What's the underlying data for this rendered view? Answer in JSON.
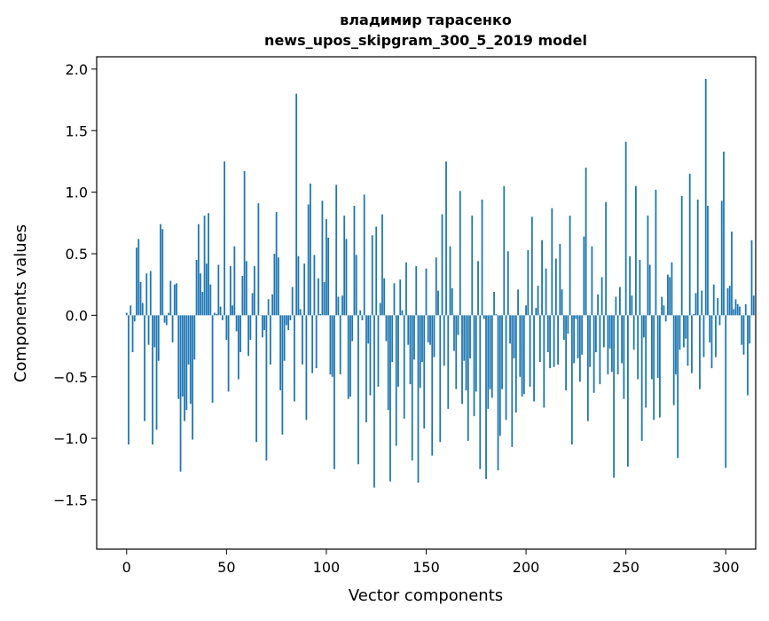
{
  "chart_data": {
    "type": "bar",
    "title": "владимир тарасенко",
    "subtitle": "news_upos_skipgram_300_5_2019 model",
    "xlabel": "Vector components",
    "ylabel": "Components values",
    "xlim": [
      -15,
      315
    ],
    "ylim": [
      -1.9,
      2.1
    ],
    "xticks": [
      0,
      50,
      100,
      150,
      200,
      250,
      300
    ],
    "xtick_labels": [
      "0",
      "50",
      "100",
      "150",
      "200",
      "250",
      "300"
    ],
    "yticks": [
      2.0,
      1.5,
      1.0,
      0.5,
      0.0,
      -0.5,
      -1.0,
      -1.5
    ],
    "ytick_labels": [
      "2.0",
      "1.5",
      "1.0",
      "0.5",
      "0.0",
      "−0.5",
      "−1.0",
      "−1.5"
    ],
    "bar_color": "#1f77b4",
    "grid": false,
    "legend": "none",
    "x_start": 0,
    "values": [
      0.02,
      -1.05,
      0.08,
      -0.3,
      -0.05,
      0.55,
      0.62,
      0.27,
      0.1,
      -0.86,
      0.34,
      -0.24,
      0.36,
      -1.05,
      -0.26,
      -0.93,
      -0.37,
      0.74,
      0.7,
      -0.06,
      -0.08,
      0.02,
      0.28,
      -0.22,
      0.25,
      0.26,
      -0.68,
      -1.27,
      -0.66,
      -0.86,
      -0.77,
      -0.4,
      -0.72,
      -1.01,
      -0.36,
      0.45,
      0.74,
      0.34,
      0.19,
      0.81,
      0.42,
      0.83,
      0.25,
      -0.71,
      0.02,
      0.01,
      0.41,
      0.07,
      -0.04,
      1.25,
      -0.2,
      -0.62,
      0.4,
      0.08,
      0.56,
      -0.13,
      -0.52,
      -0.3,
      0.32,
      1.17,
      0.44,
      -0.33,
      -0.2,
      0.18,
      0.4,
      -1.03,
      0.91,
      0.0,
      -0.18,
      -0.12,
      -1.18,
      0.13,
      -0.4,
      0.17,
      0.5,
      0.84,
      0.47,
      -0.61,
      -0.97,
      -0.37,
      -0.08,
      -0.12,
      -0.04,
      0.23,
      -0.7,
      1.8,
      0.48,
      0.05,
      -0.4,
      0.42,
      -0.85,
      0.9,
      1.07,
      -0.47,
      0.49,
      -0.43,
      0.3,
      0.01,
      0.93,
      0.27,
      0.78,
      0.63,
      -0.48,
      -0.5,
      -1.25,
      1.06,
      0.15,
      -0.48,
      0.16,
      0.81,
      0.62,
      -0.68,
      -0.66,
      -0.21,
      0.89,
      0.49,
      -1.21,
      0.04,
      -0.04,
      0.98,
      -0.87,
      -0.23,
      -0.65,
      0.65,
      -1.4,
      0.72,
      -0.58,
      0.1,
      0.82,
      0.3,
      -0.21,
      -0.77,
      -1.35,
      -0.38,
      0.26,
      -1.06,
      -0.58,
      0.29,
      0.04,
      -0.84,
      0.43,
      -0.24,
      -0.56,
      -1.18,
      -0.36,
      0.4,
      -1.36,
      -0.59,
      -0.38,
      -0.92,
      0.38,
      -0.22,
      -0.24,
      -1.14,
      -0.34,
      0.47,
      0.2,
      -1.03,
      0.82,
      -0.41,
      1.25,
      -0.76,
      0.56,
      0.22,
      -0.29,
      -0.6,
      -0.16,
      1.01,
      -0.72,
      -0.37,
      -0.61,
      -1.02,
      -0.35,
      0.81,
      -0.82,
      -0.62,
      0.44,
      -1.25,
      0.94,
      -0.03,
      -1.33,
      -0.76,
      -0.6,
      -0.67,
      0.19,
      0.01,
      -1.26,
      -0.98,
      -0.6,
      1.05,
      -0.85,
      0.52,
      -0.23,
      -1.07,
      -0.35,
      -0.79,
      0.21,
      -0.5,
      -0.66,
      -0.64,
      0.08,
      0.53,
      -0.58,
      0.8,
      -0.7,
      0.06,
      0.24,
      -0.38,
      0.61,
      -0.75,
      0.38,
      -0.3,
      -0.43,
      0.87,
      -0.42,
      0.46,
      -0.4,
      0.58,
      0.21,
      -0.2,
      -0.61,
      -0.15,
      0.81,
      -1.05,
      -0.39,
      -0.03,
      -0.35,
      -0.54,
      -0.32,
      0.64,
      1.2,
      -0.86,
      -0.42,
      0.56,
      -0.63,
      -0.3,
      0.17,
      -0.56,
      0.31,
      -0.26,
      0.92,
      -0.48,
      -0.27,
      -0.46,
      -1.32,
      0.15,
      -0.48,
      0.23,
      -0.39,
      -0.68,
      1.41,
      -1.23,
      0.48,
      0.16,
      -0.28,
      1.05,
      -0.52,
      0.45,
      -1.02,
      -0.18,
      -0.75,
      0.81,
      0.41,
      -0.52,
      -0.85,
      1.02,
      -0.51,
      -0.83,
      0.15,
      0.08,
      -0.05,
      0.33,
      0.31,
      0.43,
      -0.73,
      -0.48,
      -1.16,
      -0.28,
      0.97,
      -0.26,
      -0.19,
      -0.41,
      1.15,
      -0.47,
      0.01,
      0.18,
      0.94,
      -0.6,
      0.2,
      -0.34,
      1.92,
      0.89,
      -0.22,
      -0.43,
      0.25,
      -0.34,
      0.14,
      -0.08,
      0.93,
      1.33,
      -1.24,
      0.22,
      0.24,
      0.68,
      0.05,
      0.13,
      0.09,
      0.07,
      -0.24,
      -0.32,
      0.09,
      -0.65,
      -0.23,
      0.61,
      0.16
    ]
  }
}
